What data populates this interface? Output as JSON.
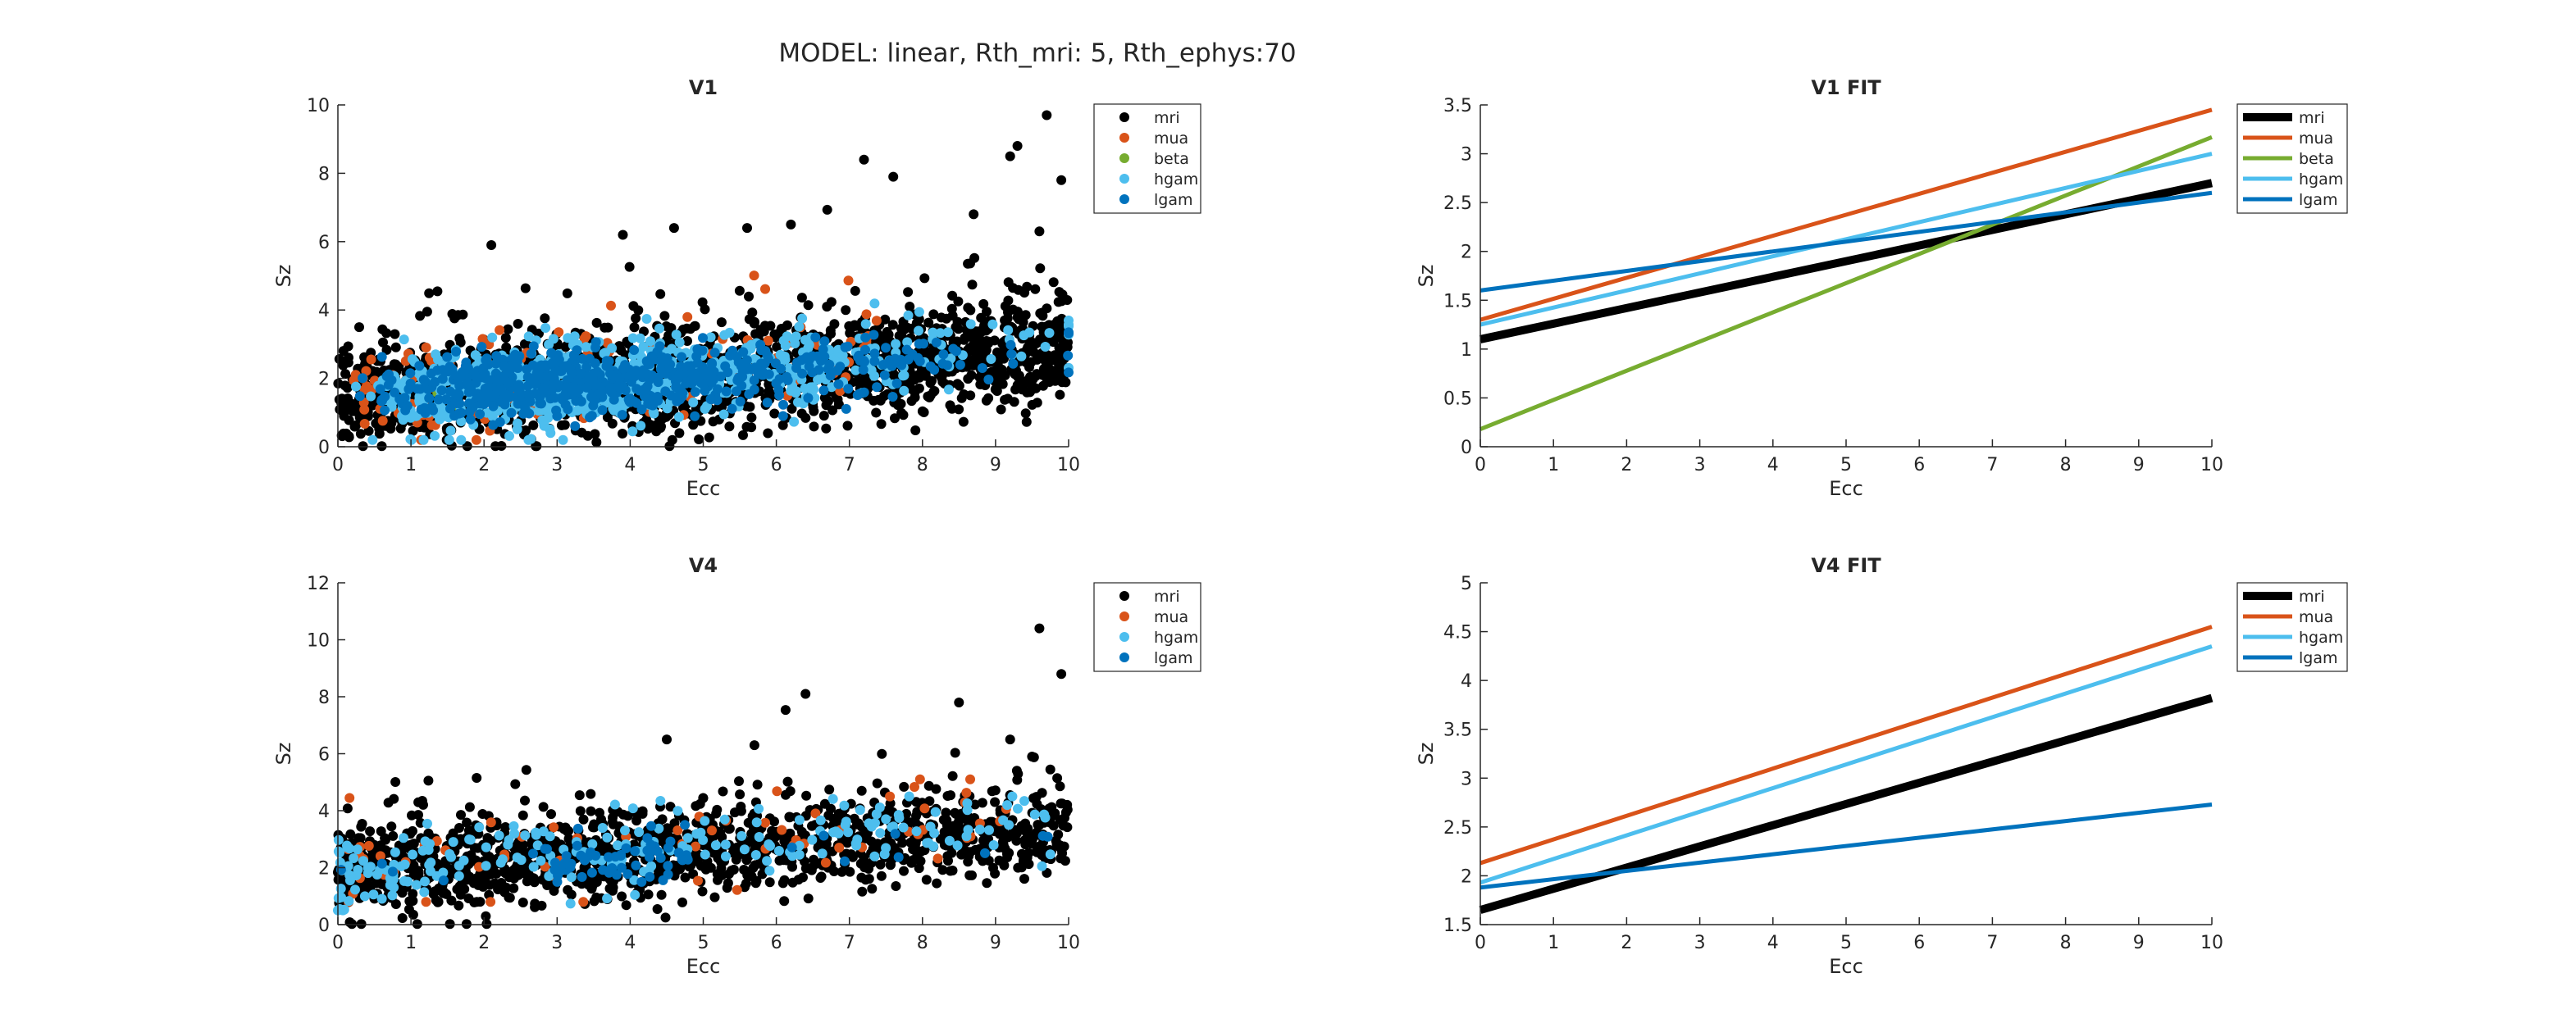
{
  "figure": {
    "suptitle": "MODEL: linear, Rth_mri: 5, Rth_ephys:70"
  },
  "colors": {
    "mri": "#000000",
    "mua": "#D95319",
    "beta": "#77AC30",
    "hgam": "#4DBEEE",
    "lgam": "#0072BD"
  },
  "chart_data": [
    {
      "type": "scatter",
      "title": "V1",
      "xlabel": "Ecc",
      "ylabel": "Sz",
      "xlim": [
        0,
        10
      ],
      "ylim": [
        0,
        10
      ],
      "xticks": [
        "0",
        "1",
        "2",
        "3",
        "4",
        "5",
        "6",
        "7",
        "8",
        "9",
        "10"
      ],
      "yticks": [
        "0",
        "2",
        "4",
        "6",
        "8",
        "10"
      ],
      "legend": [
        "mri",
        "mua",
        "beta",
        "hgam",
        "lgam"
      ],
      "legend_position": "top-right outside",
      "series": [
        {
          "name": "mri",
          "point_count_estimate": 1800,
          "range": {
            "x": [
              0,
              10
            ],
            "y": [
              0,
              9.7
            ]
          },
          "outliers": [
            [
              9.7,
              9.7
            ],
            [
              9.3,
              8.8
            ],
            [
              9.2,
              8.5
            ],
            [
              7.2,
              8.4
            ],
            [
              7.6,
              7.9
            ],
            [
              9.9,
              7.8
            ],
            [
              8.7,
              6.8
            ],
            [
              6.2,
              6.5
            ],
            [
              4.6,
              6.4
            ],
            [
              3.9,
              6.2
            ],
            [
              2.1,
              5.9
            ],
            [
              5.6,
              6.4
            ],
            [
              9.6,
              6.3
            ]
          ]
        },
        {
          "name": "mua",
          "point_count_estimate": 120,
          "range": {
            "x": [
              0.2,
              7.5
            ],
            "y": [
              0.2,
              5.1
            ]
          }
        },
        {
          "name": "beta",
          "point_count_estimate": 6,
          "range": {
            "x": [
              1.0,
              6.0
            ],
            "y": [
              1.2,
              2.0
            ]
          }
        },
        {
          "name": "hgam",
          "point_count_estimate": 700,
          "range": {
            "x": [
              0,
              9.8
            ],
            "y": [
              0.2,
              5.6
            ]
          }
        },
        {
          "name": "lgam",
          "point_count_estimate": 600,
          "range": {
            "x": [
              0,
              9.8
            ],
            "y": [
              0.5,
              3.9
            ]
          }
        }
      ],
      "trend_note": "mri mean size rises from about 1.3 at Ecc 0 to about 2.8 at Ecc 10"
    },
    {
      "type": "line",
      "title": "V1 FIT",
      "xlabel": "Ecc",
      "ylabel": "Sz",
      "xlim": [
        0,
        10
      ],
      "ylim": [
        0,
        3.5
      ],
      "xticks": [
        "0",
        "1",
        "2",
        "3",
        "4",
        "5",
        "6",
        "7",
        "8",
        "9",
        "10"
      ],
      "yticks": [
        "0",
        "0.5",
        "1",
        "1.5",
        "2",
        "2.5",
        "3",
        "3.5"
      ],
      "legend": [
        "mri",
        "mua",
        "beta",
        "hgam",
        "lgam"
      ],
      "legend_position": "top-right outside",
      "x": [
        0,
        10
      ],
      "series": [
        {
          "name": "mri",
          "values": [
            1.1,
            2.7
          ],
          "width": "thick"
        },
        {
          "name": "mua",
          "values": [
            1.3,
            3.45
          ]
        },
        {
          "name": "beta",
          "values": [
            0.18,
            3.17
          ]
        },
        {
          "name": "hgam",
          "values": [
            1.25,
            3.0
          ]
        },
        {
          "name": "lgam",
          "values": [
            1.6,
            2.6
          ]
        }
      ]
    },
    {
      "type": "scatter",
      "title": "V4",
      "xlabel": "Ecc",
      "ylabel": "Sz",
      "xlim": [
        0,
        10
      ],
      "ylim": [
        0,
        12
      ],
      "xticks": [
        "0",
        "1",
        "2",
        "3",
        "4",
        "5",
        "6",
        "7",
        "8",
        "9",
        "10"
      ],
      "yticks": [
        "0",
        "2",
        "4",
        "6",
        "8",
        "10",
        "12"
      ],
      "legend": [
        "mri",
        "mua",
        "hgam",
        "lgam"
      ],
      "legend_position": "top-right outside",
      "series": [
        {
          "name": "mri",
          "point_count_estimate": 1300,
          "range": {
            "x": [
              0,
              10
            ],
            "y": [
              0,
              10.4
            ]
          },
          "outliers": [
            [
              9.6,
              10.4
            ],
            [
              9.9,
              8.8
            ],
            [
              6.4,
              8.1
            ],
            [
              8.5,
              7.8
            ],
            [
              9.2,
              6.5
            ],
            [
              4.5,
              6.5
            ],
            [
              5.7,
              6.3
            ],
            [
              9.5,
              5.9
            ]
          ]
        },
        {
          "name": "mua",
          "point_count_estimate": 70,
          "range": {
            "x": [
              0.1,
              9.6
            ],
            "y": [
              0.8,
              5.1
            ]
          }
        },
        {
          "name": "hgam",
          "point_count_estimate": 220,
          "range": {
            "x": [
              0.1,
              9.9
            ],
            "y": [
              0.5,
              4.5
            ]
          }
        },
        {
          "name": "lgam",
          "point_count_estimate": 70,
          "range": {
            "x": [
              0.1,
              9.8
            ],
            "y": [
              1.5,
              3.5
            ]
          }
        }
      ],
      "trend_note": "mri mean size rises from about 1.8 at Ecc 0 to about 3.3 at Ecc 10"
    },
    {
      "type": "line",
      "title": "V4 FIT",
      "xlabel": "Ecc",
      "ylabel": "Sz",
      "xlim": [
        0,
        10
      ],
      "ylim": [
        1.5,
        5
      ],
      "xticks": [
        "0",
        "1",
        "2",
        "3",
        "4",
        "5",
        "6",
        "7",
        "8",
        "9",
        "10"
      ],
      "yticks": [
        "1.5",
        "2",
        "2.5",
        "3",
        "3.5",
        "4",
        "4.5",
        "5"
      ],
      "legend": [
        "mri",
        "mua",
        "hgam",
        "lgam"
      ],
      "legend_position": "top-right outside",
      "x": [
        0,
        10
      ],
      "series": [
        {
          "name": "mri",
          "values": [
            1.65,
            3.82
          ],
          "width": "thick"
        },
        {
          "name": "mua",
          "values": [
            2.13,
            4.55
          ]
        },
        {
          "name": "hgam",
          "values": [
            1.93,
            4.35
          ]
        },
        {
          "name": "lgam",
          "values": [
            1.88,
            2.73
          ]
        }
      ]
    }
  ]
}
